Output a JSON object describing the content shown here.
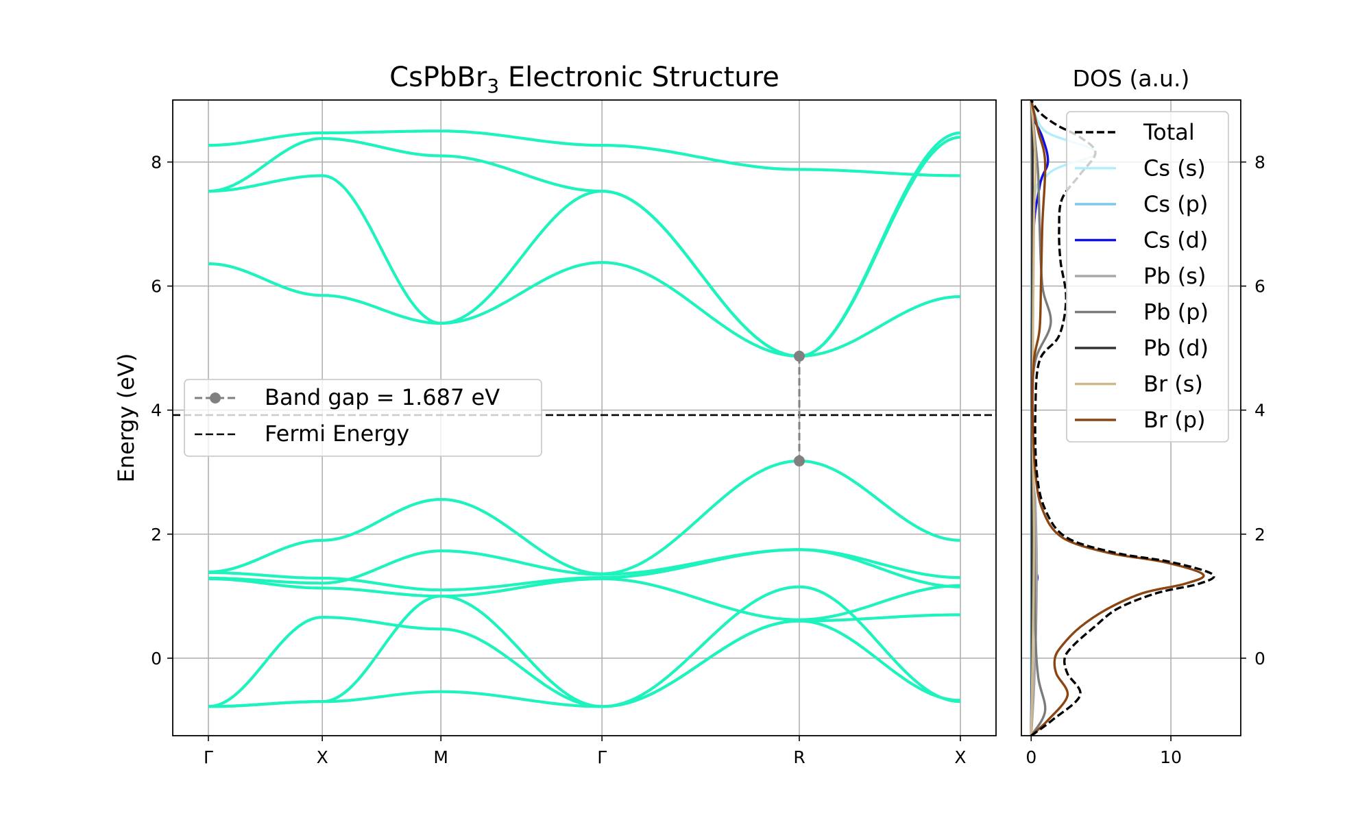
{
  "chart_data": [
    {
      "type": "line",
      "title": "CsPbBr",
      "title_subscript": "3",
      "title_suffix": " Electronic Structure",
      "ylabel": "Energy (eV)",
      "xlabel": "",
      "ylim": [
        -1.25,
        9.0
      ],
      "yticks": [
        0,
        2,
        4,
        6,
        8
      ],
      "grid": true,
      "kpoint_labels": [
        "Γ",
        "X",
        "M",
        "Γ",
        "R",
        "X"
      ],
      "kpoint_positions": [
        0.0,
        0.5,
        1.0207,
        1.7278,
        2.594,
        3.3011
      ],
      "band_color": "#1ef2bd",
      "fermi_energy": 3.92,
      "band_gap": {
        "label": "Band gap = 1.687 eV",
        "x": 2.594,
        "vbm": 3.18,
        "cbm": 4.87,
        "color": "#808080"
      },
      "legend": {
        "placement": "center-left",
        "entries": [
          "Band gap = 1.687 eV",
          "Fermi Energy"
        ]
      },
      "series": [
        {
          "x": [
            0.0,
            0.5,
            1.0207,
            1.7278,
            2.594,
            3.3011
          ],
          "values": [
            -0.78,
            0.66,
            0.47,
            -0.78,
            0.6,
            0.7
          ]
        },
        {
          "x": [
            0.0,
            0.5,
            1.0207,
            1.7278,
            2.594,
            3.3011
          ],
          "values": [
            -0.78,
            -0.7,
            1.0,
            -0.78,
            0.6,
            -0.68
          ]
        },
        {
          "x": [
            0.0,
            0.5,
            1.0207,
            1.7278,
            2.594,
            3.3011
          ],
          "values": [
            -0.78,
            -0.7,
            -0.54,
            -0.78,
            1.15,
            -0.7
          ]
        },
        {
          "x": [
            0.0,
            0.5,
            1.0207,
            1.7278,
            2.594,
            3.3011
          ],
          "values": [
            1.28,
            1.13,
            1.0,
            1.28,
            0.62,
            1.17
          ]
        },
        {
          "x": [
            0.0,
            0.5,
            1.0207,
            1.7278,
            2.594,
            3.3011
          ],
          "values": [
            1.29,
            1.21,
            1.73,
            1.35,
            1.75,
            1.15
          ]
        },
        {
          "x": [
            0.0,
            0.5,
            1.0207,
            1.7278,
            2.594,
            3.3011
          ],
          "values": [
            1.38,
            1.29,
            1.1,
            1.3,
            1.75,
            1.3
          ]
        },
        {
          "x": [
            0.0,
            0.5,
            1.0207,
            1.7278,
            2.594,
            3.3011
          ],
          "values": [
            1.39,
            1.9,
            2.56,
            1.36,
            3.18,
            1.9
          ]
        },
        {
          "x": [
            0.0,
            0.5,
            1.0207,
            1.7278,
            2.594,
            3.3011
          ],
          "values": [
            6.36,
            5.85,
            5.4,
            6.38,
            4.87,
            5.83
          ]
        },
        {
          "x": [
            0.0,
            0.5,
            1.0207,
            1.7278,
            2.594,
            3.3011
          ],
          "values": [
            7.53,
            7.78,
            5.4,
            7.53,
            4.87,
            8.4
          ]
        },
        {
          "x": [
            0.0,
            0.5,
            1.0207,
            1.7278,
            2.594,
            3.3011
          ],
          "values": [
            7.53,
            8.38,
            8.1,
            7.53,
            4.87,
            8.47
          ]
        },
        {
          "x": [
            0.0,
            0.5,
            1.0207,
            1.7278,
            2.594,
            3.3011
          ],
          "values": [
            8.27,
            8.47,
            8.5,
            8.27,
            7.88,
            7.78
          ]
        }
      ]
    },
    {
      "type": "line",
      "title": "DOS (a.u.)",
      "xlim": [
        -0.7,
        15.0
      ],
      "xticks": [
        0,
        10
      ],
      "ylim": [
        -1.25,
        9.0
      ],
      "yticks": [
        0,
        2,
        4,
        6,
        8
      ],
      "yticks_side": "right",
      "grid": true,
      "legend": {
        "placement": "top-right"
      },
      "series": [
        {
          "name": "Total",
          "color": "#000000",
          "dash": "dashed",
          "points": [
            [
              0.0,
              -1.25
            ],
            [
              1.5,
              -1.0
            ],
            [
              3.5,
              -0.6
            ],
            [
              2.6,
              -0.25
            ],
            [
              2.4,
              0.0
            ],
            [
              3.0,
              0.2
            ],
            [
              4.5,
              0.5
            ],
            [
              6.2,
              0.8
            ],
            [
              9.0,
              1.05
            ],
            [
              12.0,
              1.2
            ],
            [
              13.0,
              1.35
            ],
            [
              10.0,
              1.55
            ],
            [
              6.0,
              1.7
            ],
            [
              2.5,
              1.95
            ],
            [
              1.0,
              2.4
            ],
            [
              0.4,
              3.0
            ],
            [
              0.3,
              4.0
            ],
            [
              0.6,
              4.8
            ],
            [
              2.0,
              5.2
            ],
            [
              2.5,
              5.8
            ],
            [
              2.1,
              6.4
            ],
            [
              2.0,
              6.9
            ],
            [
              2.2,
              7.4
            ],
            [
              3.5,
              7.8
            ],
            [
              4.6,
              8.15
            ],
            [
              3.5,
              8.4
            ],
            [
              1.8,
              8.6
            ],
            [
              0.6,
              8.8
            ],
            [
              0.0,
              9.0
            ]
          ]
        },
        {
          "name": "Cs (s)",
          "color": "#b3ecfb",
          "dash": "solid",
          "points": [
            [
              0.0,
              -1.25
            ],
            [
              0.05,
              3.0
            ],
            [
              0.1,
              7.0
            ],
            [
              1.2,
              7.8
            ],
            [
              4.6,
              8.15
            ],
            [
              1.0,
              8.5
            ],
            [
              0.0,
              9.0
            ]
          ]
        },
        {
          "name": "Cs (p)",
          "color": "#7ec8ed",
          "dash": "solid",
          "points": [
            [
              0.0,
              -1.25
            ],
            [
              0.02,
              4.0
            ],
            [
              0.05,
              8.0
            ],
            [
              0.0,
              9.0
            ]
          ]
        },
        {
          "name": "Cs (d)",
          "color": "#1010e0",
          "dash": "solid",
          "points": [
            [
              0.0,
              -1.25
            ],
            [
              0.05,
              0.0
            ],
            [
              0.1,
              1.0
            ],
            [
              0.45,
              1.3
            ],
            [
              0.1,
              1.6
            ],
            [
              0.05,
              3.0
            ],
            [
              0.1,
              6.5
            ],
            [
              0.6,
              7.6
            ],
            [
              1.2,
              8.0
            ],
            [
              0.8,
              8.4
            ],
            [
              0.2,
              8.7
            ],
            [
              0.0,
              9.0
            ]
          ]
        },
        {
          "name": "Pb (s)",
          "color": "#a8a8a8",
          "dash": "solid",
          "points": [
            [
              0.0,
              -1.25
            ],
            [
              0.2,
              -0.5
            ],
            [
              0.35,
              0.5
            ],
            [
              0.4,
              1.5
            ],
            [
              0.3,
              2.5
            ],
            [
              0.1,
              3.5
            ],
            [
              0.0,
              9.0
            ]
          ]
        },
        {
          "name": "Pb (p)",
          "color": "#7b7b7b",
          "dash": "solid",
          "points": [
            [
              0.0,
              -1.25
            ],
            [
              1.0,
              -0.85
            ],
            [
              0.5,
              -0.3
            ],
            [
              0.3,
              0.5
            ],
            [
              0.2,
              2.5
            ],
            [
              0.05,
              4.0
            ],
            [
              0.3,
              4.8
            ],
            [
              1.4,
              5.4
            ],
            [
              0.8,
              6.0
            ],
            [
              0.6,
              7.0
            ],
            [
              0.5,
              7.8
            ],
            [
              0.3,
              8.3
            ],
            [
              0.0,
              9.0
            ]
          ]
        },
        {
          "name": "Pb (d)",
          "color": "#333333",
          "dash": "solid",
          "points": [
            [
              0.0,
              -1.25
            ],
            [
              0.05,
              0.0
            ],
            [
              0.05,
              4.0
            ],
            [
              0.1,
              8.0
            ],
            [
              0.0,
              9.0
            ]
          ]
        },
        {
          "name": "Br (s)",
          "color": "#cdb98d",
          "dash": "solid",
          "points": [
            [
              0.0,
              -1.25
            ],
            [
              0.1,
              0.0
            ],
            [
              0.2,
              2.0
            ],
            [
              0.1,
              4.0
            ],
            [
              0.2,
              7.0
            ],
            [
              0.3,
              8.0
            ],
            [
              0.0,
              9.0
            ]
          ]
        },
        {
          "name": "Br (p)",
          "color": "#8b4513",
          "dash": "solid",
          "points": [
            [
              0.0,
              -1.25
            ],
            [
              1.2,
              -1.0
            ],
            [
              2.6,
              -0.6
            ],
            [
              1.8,
              -0.25
            ],
            [
              1.7,
              0.0
            ],
            [
              2.2,
              0.2
            ],
            [
              3.5,
              0.5
            ],
            [
              5.5,
              0.8
            ],
            [
              8.0,
              1.05
            ],
            [
              11.0,
              1.2
            ],
            [
              12.3,
              1.35
            ],
            [
              9.5,
              1.55
            ],
            [
              5.5,
              1.7
            ],
            [
              2.2,
              1.95
            ],
            [
              0.8,
              2.4
            ],
            [
              0.3,
              3.0
            ],
            [
              0.1,
              4.0
            ],
            [
              0.2,
              4.8
            ],
            [
              0.6,
              5.3
            ],
            [
              0.7,
              6.0
            ],
            [
              0.8,
              7.0
            ],
            [
              1.0,
              8.0
            ],
            [
              0.5,
              8.5
            ],
            [
              0.0,
              9.0
            ]
          ]
        }
      ]
    }
  ]
}
